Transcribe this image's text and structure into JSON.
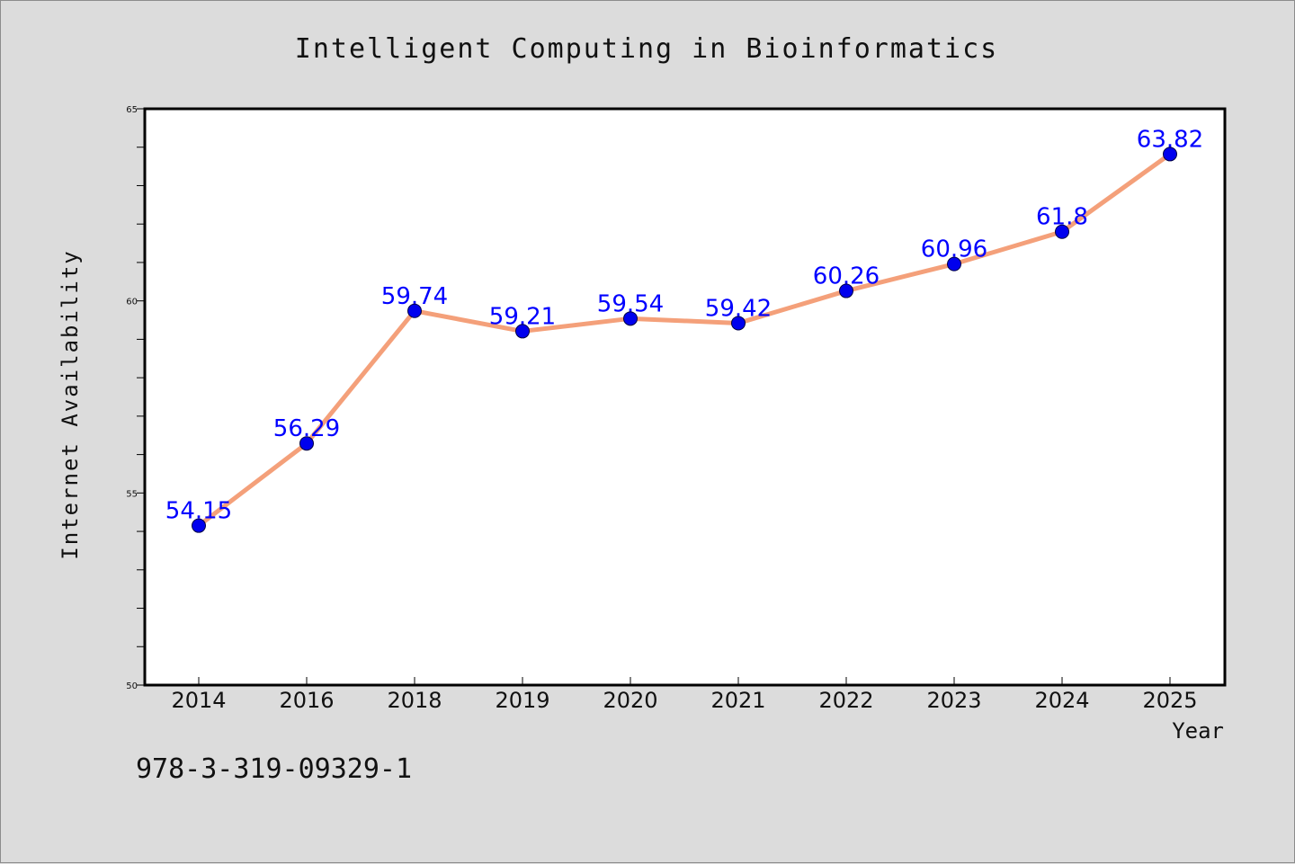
{
  "colors": {
    "page_background": "#dcdcdc",
    "plot_background": "#ffffff",
    "line": "#f4a07a",
    "marker": "#0000ee",
    "data_label": "#0000ff",
    "text": "#111111"
  },
  "footer": {
    "isbn": "978-3-319-09329-1"
  },
  "chart_data": {
    "type": "line",
    "title": "Intelligent Computing in Bioinformatics",
    "xlabel": "Year",
    "ylabel": "Internet Availability",
    "categories": [
      "2014",
      "2016",
      "2018",
      "2019",
      "2020",
      "2021",
      "2022",
      "2023",
      "2024",
      "2025"
    ],
    "series": [
      {
        "values": [
          54.15,
          56.29,
          59.74,
          59.21,
          59.54,
          59.42,
          60.26,
          60.96,
          61.8,
          63.82
        ],
        "labels": [
          "54.15",
          "56.29",
          "59.74",
          "59.21",
          "59.54",
          "59.42",
          "60.26",
          "60.96",
          "61.8",
          "63.82"
        ]
      }
    ],
    "ylim": [
      50,
      65
    ],
    "yticks": [
      50,
      55,
      60,
      65
    ],
    "y_minor_step": 1,
    "grid": false,
    "legend": "none"
  }
}
